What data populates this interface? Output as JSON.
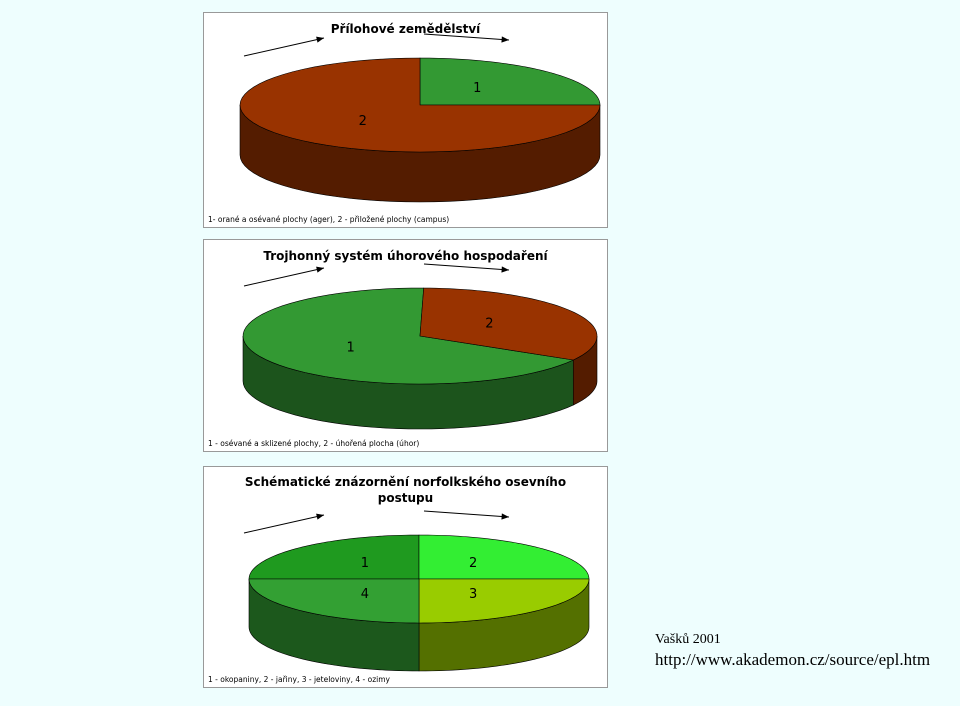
{
  "chart_data": [
    {
      "type": "pie",
      "title": "Přílohové zemědělství",
      "categories": [
        "1",
        "2"
      ],
      "values": [
        25,
        75
      ],
      "colors": [
        "#339933",
        "#993300"
      ],
      "startangle": 0,
      "caption": "1- orané a osévané plochy (ager), 2 - přiložené plochy (campus)"
    },
    {
      "type": "pie",
      "title": "Trojhonný systém úhorového hospodaření",
      "categories": [
        "1",
        "2"
      ],
      "values": [
        67,
        33
      ],
      "colors": [
        "#339933",
        "#993300"
      ],
      "startangle": 120,
      "caption": "1 - osévané a sklizené plochy, 2 - úhořená plocha (úhor)"
    },
    {
      "type": "pie",
      "title": "Schématické znázornění norfolkského osevního postupu",
      "categories": [
        "1",
        "2",
        "3",
        "4"
      ],
      "values": [
        25,
        25,
        25,
        25
      ],
      "colors": [
        "#1f9a1f",
        "#33ee33",
        "#99cc00",
        "#33a033"
      ],
      "startangle": 270,
      "caption": "1 - okopaniny, 2 - jařiny, 3 - jeteloviny, 4 - ozimy"
    }
  ],
  "footer": {
    "author": "Vašků 2001",
    "url": "http://www.akademon.cz/source/epl.htm"
  }
}
